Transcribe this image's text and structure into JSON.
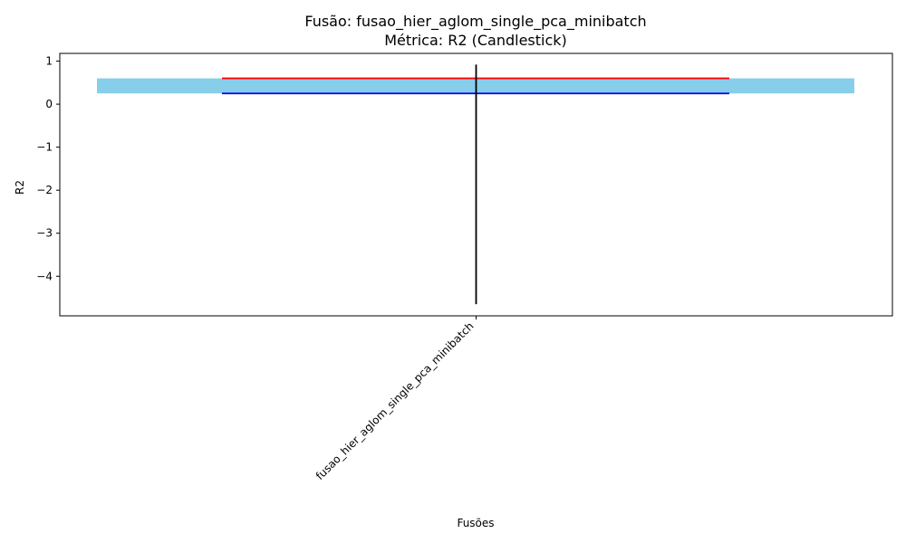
{
  "chart_data": {
    "type": "candlestick",
    "title": "Fusão: fusao_hier_aglom_single_pca_minibatch",
    "subtitle": "Métrica: R2 (Candlestick)",
    "xlabel": "Fusões",
    "ylabel": "R2",
    "categories": [
      "fusao_hier_aglom_single_pca_minibatch"
    ],
    "candles": [
      {
        "category": "fusao_hier_aglom_single_pca_minibatch",
        "open": 0.25,
        "close": 0.6,
        "high": 0.92,
        "low": -4.65
      }
    ],
    "yticks": [
      1,
      0,
      -1,
      -2,
      -3,
      -4
    ],
    "ytick_labels": [
      "1",
      "0",
      "−1",
      "−2",
      "−3",
      "−4"
    ],
    "ylim": [
      -4.92,
      1.18
    ],
    "grid": false,
    "legend": "none",
    "colors": {
      "body": "#87ceeb",
      "high_line": "#ff0000",
      "low_line": "#0000ff",
      "wick": "#000000"
    }
  }
}
